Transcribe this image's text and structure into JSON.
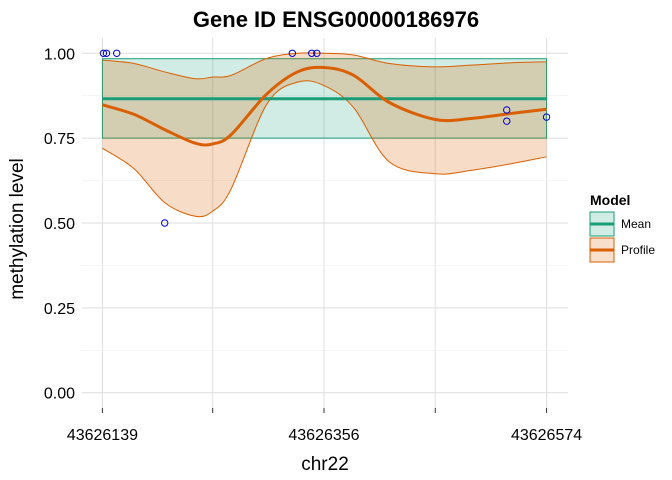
{
  "chart_data": {
    "type": "line",
    "title": "Gene ID ENSG00000186976",
    "xlabel": "chr22",
    "ylabel": "methylation level",
    "xlim": [
      43626139,
      43626574
    ],
    "ylim": [
      0,
      1
    ],
    "x_ticks": [
      43626139,
      43626356,
      43626574
    ],
    "x_minor_ticks": [
      43626247,
      43626465
    ],
    "y_ticks": [
      0.0,
      0.25,
      0.5,
      0.75,
      1.0
    ],
    "y_tick_labels": [
      "0.00",
      "0.25",
      "0.50",
      "0.75",
      "1.00"
    ],
    "grid": true,
    "legend": {
      "title": "Model",
      "position": "right",
      "entries": [
        {
          "label": "Mean",
          "line_color": "#1b9e77",
          "fill_color": "#1b9e77"
        },
        {
          "label": "Profile",
          "line_color": "#d95f02",
          "fill_color": "#d95f02"
        }
      ]
    },
    "mean": {
      "value": 0.866,
      "lower": 0.75,
      "upper": 0.984,
      "color": "#1b9e77"
    },
    "profile": {
      "color": "#d95f02",
      "x": [
        43626139,
        43626170,
        43626200,
        43626230,
        43626247,
        43626265,
        43626300,
        43626330,
        43626356,
        43626385,
        43626420,
        43626465,
        43626500,
        43626540,
        43626574
      ],
      "y": [
        0.848,
        0.82,
        0.775,
        0.735,
        0.733,
        0.76,
        0.88,
        0.945,
        0.958,
        0.935,
        0.855,
        0.805,
        0.808,
        0.823,
        0.835
      ],
      "lower": [
        0.72,
        0.66,
        0.56,
        0.52,
        0.535,
        0.6,
        0.85,
        0.915,
        0.905,
        0.84,
        0.68,
        0.645,
        0.655,
        0.675,
        0.695
      ],
      "upper": [
        0.98,
        0.97,
        0.945,
        0.925,
        0.93,
        0.935,
        0.985,
        1.0,
        1.0,
        0.995,
        0.97,
        0.96,
        0.965,
        0.972,
        0.975
      ]
    },
    "points": [
      {
        "x": 43626140,
        "y": 1.0
      },
      {
        "x": 43626143,
        "y": 1.0
      },
      {
        "x": 43626153,
        "y": 1.0
      },
      {
        "x": 43626200,
        "y": 0.5
      },
      {
        "x": 43626325,
        "y": 1.0
      },
      {
        "x": 43626344,
        "y": 1.0
      },
      {
        "x": 43626349,
        "y": 1.0
      },
      {
        "x": 43626535,
        "y": 0.833
      },
      {
        "x": 43626535,
        "y": 0.8
      },
      {
        "x": 43626574,
        "y": 0.812
      }
    ],
    "point_color": "#0000cc"
  }
}
